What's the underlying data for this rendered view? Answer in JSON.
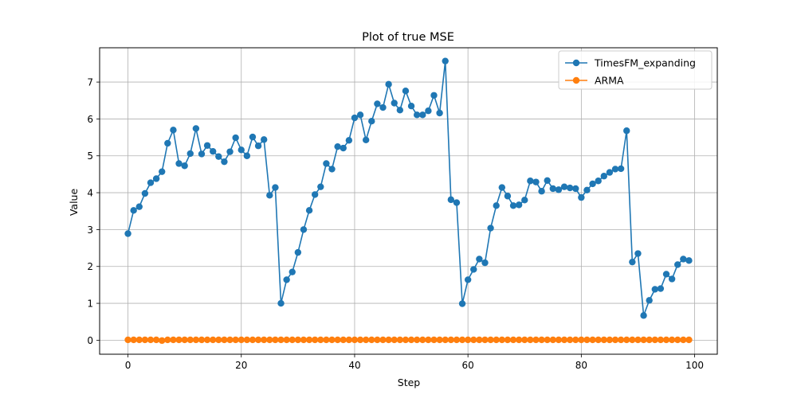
{
  "chart_data": {
    "type": "line",
    "title": "Plot of true MSE",
    "xlabel": "Step",
    "ylabel": "Value",
    "xlim": [
      -5,
      104
    ],
    "ylim": [
      -0.38,
      7.93
    ],
    "xticks": [
      0,
      20,
      40,
      60,
      80,
      100
    ],
    "yticks": [
      0,
      1,
      2,
      3,
      4,
      5,
      6,
      7
    ],
    "grid": true,
    "legend_position": "top-right",
    "series": [
      {
        "name": "TimesFM_expanding",
        "color": "#1f77b4",
        "marker": "circle",
        "x": [
          0,
          1,
          2,
          3,
          4,
          5,
          6,
          7,
          8,
          9,
          10,
          11,
          12,
          13,
          14,
          15,
          16,
          17,
          18,
          19,
          20,
          21,
          22,
          23,
          24,
          25,
          26,
          27,
          28,
          29,
          30,
          31,
          32,
          33,
          34,
          35,
          36,
          37,
          38,
          39,
          40,
          41,
          42,
          43,
          44,
          45,
          46,
          47,
          48,
          49,
          50,
          51,
          52,
          53,
          54,
          55,
          56,
          57,
          58,
          59,
          60,
          61,
          62,
          63,
          64,
          65,
          66,
          67,
          68,
          69,
          70,
          71,
          72,
          73,
          74,
          75,
          76,
          77,
          78,
          79,
          80,
          81,
          82,
          83,
          84,
          85,
          86,
          87,
          88,
          89,
          90,
          91,
          92,
          93,
          94,
          95,
          96,
          97,
          98,
          99
        ],
        "y": [
          2.89,
          3.52,
          3.62,
          3.98,
          4.27,
          4.38,
          4.57,
          5.34,
          5.7,
          4.79,
          4.73,
          5.06,
          5.74,
          5.05,
          5.28,
          5.12,
          4.98,
          4.84,
          5.11,
          5.49,
          5.16,
          5.0,
          5.51,
          5.27,
          5.44,
          3.93,
          4.14,
          1.0,
          1.64,
          1.85,
          2.38,
          3.0,
          3.52,
          3.95,
          4.16,
          4.79,
          4.64,
          5.25,
          5.21,
          5.42,
          6.03,
          6.11,
          5.43,
          5.94,
          6.41,
          6.31,
          6.94,
          6.43,
          6.24,
          6.76,
          6.35,
          6.11,
          6.11,
          6.22,
          6.64,
          6.16,
          7.57,
          3.81,
          3.73,
          0.99,
          1.64,
          1.92,
          2.2,
          2.1,
          3.04,
          3.65,
          4.14,
          3.91,
          3.65,
          3.67,
          3.8,
          4.32,
          4.29,
          4.04,
          4.33,
          4.11,
          4.08,
          4.16,
          4.13,
          4.11,
          3.87,
          4.07,
          4.24,
          4.32,
          4.45,
          4.55,
          4.64,
          4.65,
          5.68,
          2.12,
          2.35,
          0.67,
          1.08,
          1.38,
          1.4,
          1.79,
          1.66,
          2.05,
          2.2,
          2.16
        ]
      },
      {
        "name": "ARMA",
        "color": "#ff7f0e",
        "marker": "circle",
        "x": [
          0,
          1,
          2,
          3,
          4,
          5,
          6,
          7,
          8,
          9,
          10,
          11,
          12,
          13,
          14,
          15,
          16,
          17,
          18,
          19,
          20,
          21,
          22,
          23,
          24,
          25,
          26,
          27,
          28,
          29,
          30,
          31,
          32,
          33,
          34,
          35,
          36,
          37,
          38,
          39,
          40,
          41,
          42,
          43,
          44,
          45,
          46,
          47,
          48,
          49,
          50,
          51,
          52,
          53,
          54,
          55,
          56,
          57,
          58,
          59,
          60,
          61,
          62,
          63,
          64,
          65,
          66,
          67,
          68,
          69,
          70,
          71,
          72,
          73,
          74,
          75,
          76,
          77,
          78,
          79,
          80,
          81,
          82,
          83,
          84,
          85,
          86,
          87,
          88,
          89,
          90,
          91,
          92,
          93,
          94,
          95,
          96,
          97,
          98,
          99
        ],
        "y": [
          0.01,
          0.01,
          0.01,
          0.01,
          0.01,
          0.01,
          -0.01,
          0.01,
          0.01,
          0.01,
          0.01,
          0.01,
          0.01,
          0.01,
          0.01,
          0.01,
          0.01,
          0.01,
          0.01,
          0.01,
          0.01,
          0.01,
          0.01,
          0.01,
          0.01,
          0.01,
          0.01,
          0.01,
          0.01,
          0.01,
          0.01,
          0.01,
          0.01,
          0.01,
          0.01,
          0.01,
          0.01,
          0.01,
          0.01,
          0.01,
          0.01,
          0.01,
          0.01,
          0.01,
          0.01,
          0.01,
          0.01,
          0.01,
          0.01,
          0.01,
          0.01,
          0.01,
          0.01,
          0.01,
          0.01,
          0.01,
          0.01,
          0.01,
          0.01,
          0.01,
          0.01,
          0.01,
          0.01,
          0.01,
          0.01,
          0.01,
          0.01,
          0.01,
          0.01,
          0.01,
          0.01,
          0.01,
          0.01,
          0.01,
          0.01,
          0.01,
          0.01,
          0.01,
          0.01,
          0.01,
          0.01,
          0.01,
          0.01,
          0.01,
          0.01,
          0.01,
          0.01,
          0.01,
          0.01,
          0.01,
          0.01,
          0.01,
          0.01,
          0.01,
          0.01,
          0.01,
          0.01,
          0.01,
          0.01,
          0.01
        ]
      }
    ]
  }
}
